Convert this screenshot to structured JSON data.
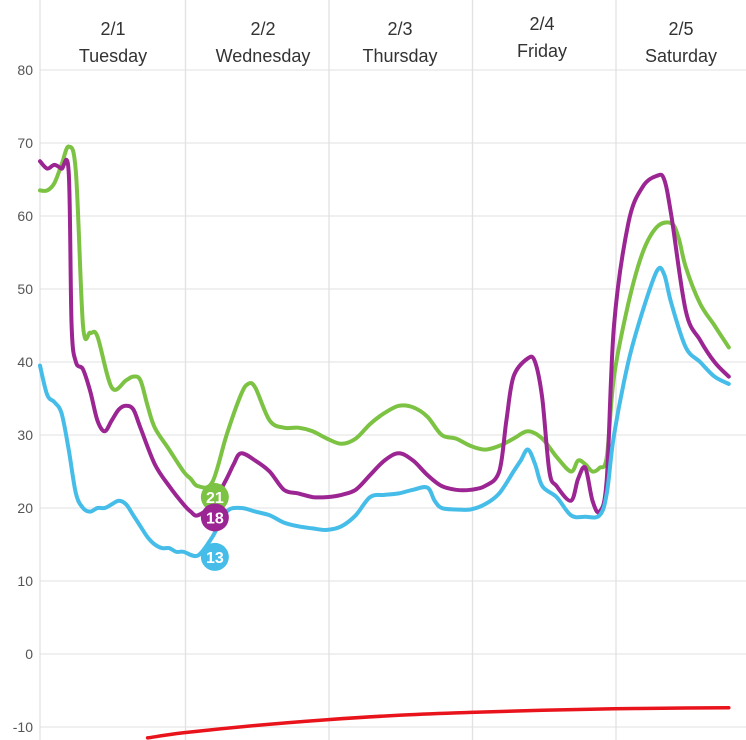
{
  "chart_data": {
    "type": "line",
    "title": "",
    "xlabel": "",
    "ylabel": "",
    "ylim": [
      -10,
      80
    ],
    "y_ticks": [
      "80",
      "70",
      "60",
      "50",
      "40",
      "30",
      "20",
      "10",
      "0",
      "-10"
    ],
    "y_tick_values": [
      80,
      70,
      60,
      50,
      40,
      30,
      20,
      10,
      0,
      -10
    ],
    "grid": true,
    "day_headers": [
      {
        "date": "2/1",
        "day": "Tuesday"
      },
      {
        "date": "2/2",
        "day": "Wednesday"
      },
      {
        "date": "2/3",
        "day": "Thursday"
      },
      {
        "date": "2/4",
        "day": "Friday"
      },
      {
        "date": "2/5",
        "day": "Saturday"
      }
    ],
    "series": [
      {
        "color": "#7cc243",
        "label": "21",
        "label_at": [
          1.1,
          21.5
        ],
        "points": [
          [
            0,
            63.5
          ],
          [
            0.05,
            63.5
          ],
          [
            0.1,
            64.5
          ],
          [
            0.15,
            67
          ],
          [
            0.2,
            69.5
          ],
          [
            0.25,
            66
          ],
          [
            0.3,
            45
          ],
          [
            0.35,
            44
          ],
          [
            0.4,
            43.5
          ],
          [
            0.5,
            36.5
          ],
          [
            0.6,
            37.5
          ],
          [
            0.65,
            38
          ],
          [
            0.7,
            37.5
          ],
          [
            0.75,
            34
          ],
          [
            0.8,
            31
          ],
          [
            0.9,
            28
          ],
          [
            1.0,
            25
          ],
          [
            1.05,
            24
          ],
          [
            1.1,
            23
          ],
          [
            1.2,
            23.5
          ],
          [
            1.3,
            30
          ],
          [
            1.4,
            35.5
          ],
          [
            1.45,
            37
          ],
          [
            1.5,
            36.5
          ],
          [
            1.6,
            32
          ],
          [
            1.7,
            31
          ],
          [
            1.8,
            31
          ],
          [
            1.9,
            30.5
          ],
          [
            2.0,
            29.5
          ],
          [
            2.1,
            28.8
          ],
          [
            2.2,
            29.5
          ],
          [
            2.3,
            31.5
          ],
          [
            2.4,
            33
          ],
          [
            2.5,
            34
          ],
          [
            2.6,
            33.8
          ],
          [
            2.7,
            32.5
          ],
          [
            2.8,
            30
          ],
          [
            2.9,
            29.5
          ],
          [
            3.0,
            28.5
          ],
          [
            3.1,
            28
          ],
          [
            3.2,
            28.5
          ],
          [
            3.3,
            29.5
          ],
          [
            3.4,
            30.5
          ],
          [
            3.5,
            29.5
          ],
          [
            3.6,
            27
          ],
          [
            3.7,
            25
          ],
          [
            3.75,
            26.5
          ],
          [
            3.8,
            26
          ],
          [
            3.85,
            25
          ],
          [
            3.9,
            25.5
          ],
          [
            3.95,
            27
          ],
          [
            4.0,
            38
          ],
          [
            4.1,
            48
          ],
          [
            4.2,
            55
          ],
          [
            4.3,
            58.5
          ],
          [
            4.4,
            59
          ],
          [
            4.45,
            57
          ],
          [
            4.5,
            53
          ],
          [
            4.6,
            48
          ],
          [
            4.7,
            45
          ],
          [
            4.8,
            42
          ]
        ]
      },
      {
        "color": "#9b2592",
        "label": "18",
        "label_at": [
          1.1,
          18.7
        ],
        "points": [
          [
            0,
            67.5
          ],
          [
            0.05,
            66.5
          ],
          [
            0.1,
            67
          ],
          [
            0.15,
            66.5
          ],
          [
            0.2,
            66
          ],
          [
            0.22,
            45
          ],
          [
            0.25,
            40
          ],
          [
            0.3,
            39
          ],
          [
            0.35,
            36
          ],
          [
            0.4,
            32
          ],
          [
            0.45,
            30.5
          ],
          [
            0.5,
            32
          ],
          [
            0.55,
            33.5
          ],
          [
            0.6,
            34
          ],
          [
            0.65,
            33.5
          ],
          [
            0.7,
            31
          ],
          [
            0.8,
            26
          ],
          [
            0.9,
            23
          ],
          [
            1.0,
            20.5
          ],
          [
            1.05,
            19.5
          ],
          [
            1.1,
            19
          ],
          [
            1.2,
            20.5
          ],
          [
            1.3,
            24
          ],
          [
            1.35,
            26
          ],
          [
            1.4,
            27.5
          ],
          [
            1.5,
            26.5
          ],
          [
            1.6,
            25
          ],
          [
            1.7,
            22.5
          ],
          [
            1.8,
            22
          ],
          [
            1.9,
            21.5
          ],
          [
            2.0,
            21.5
          ],
          [
            2.1,
            21.8
          ],
          [
            2.2,
            22.5
          ],
          [
            2.3,
            24.5
          ],
          [
            2.4,
            26.5
          ],
          [
            2.5,
            27.5
          ],
          [
            2.6,
            26.5
          ],
          [
            2.7,
            24.5
          ],
          [
            2.8,
            23
          ],
          [
            2.9,
            22.5
          ],
          [
            3.0,
            22.5
          ],
          [
            3.1,
            23
          ],
          [
            3.2,
            25
          ],
          [
            3.25,
            32
          ],
          [
            3.3,
            38
          ],
          [
            3.4,
            40.5
          ],
          [
            3.45,
            40
          ],
          [
            3.5,
            35
          ],
          [
            3.55,
            25
          ],
          [
            3.6,
            23
          ],
          [
            3.7,
            21
          ],
          [
            3.75,
            24
          ],
          [
            3.8,
            25.5
          ],
          [
            3.85,
            21
          ],
          [
            3.9,
            19.5
          ],
          [
            3.95,
            24
          ],
          [
            4.0,
            45
          ],
          [
            4.1,
            59
          ],
          [
            4.2,
            64
          ],
          [
            4.3,
            65.5
          ],
          [
            4.35,
            65
          ],
          [
            4.4,
            60
          ],
          [
            4.5,
            47
          ],
          [
            4.6,
            43
          ],
          [
            4.7,
            40
          ],
          [
            4.8,
            38
          ]
        ]
      },
      {
        "color": "#45bde8",
        "label": "13",
        "label_at": [
          1.1,
          13.3
        ],
        "points": [
          [
            0,
            39.5
          ],
          [
            0.05,
            35.5
          ],
          [
            0.1,
            34.5
          ],
          [
            0.15,
            33
          ],
          [
            0.2,
            28
          ],
          [
            0.25,
            22
          ],
          [
            0.3,
            20
          ],
          [
            0.35,
            19.5
          ],
          [
            0.4,
            20
          ],
          [
            0.45,
            20
          ],
          [
            0.5,
            20.5
          ],
          [
            0.55,
            21
          ],
          [
            0.6,
            20.5
          ],
          [
            0.65,
            19
          ],
          [
            0.7,
            17.5
          ],
          [
            0.75,
            16
          ],
          [
            0.8,
            15
          ],
          [
            0.85,
            14.5
          ],
          [
            0.9,
            14.5
          ],
          [
            0.95,
            14
          ],
          [
            1.0,
            14
          ],
          [
            1.1,
            13.5
          ],
          [
            1.2,
            16
          ],
          [
            1.3,
            19.5
          ],
          [
            1.4,
            20
          ],
          [
            1.5,
            19.5
          ],
          [
            1.6,
            19
          ],
          [
            1.7,
            18
          ],
          [
            1.8,
            17.5
          ],
          [
            1.9,
            17.2
          ],
          [
            2.0,
            17
          ],
          [
            2.1,
            17.5
          ],
          [
            2.2,
            19
          ],
          [
            2.3,
            21.5
          ],
          [
            2.4,
            21.8
          ],
          [
            2.5,
            22
          ],
          [
            2.6,
            22.5
          ],
          [
            2.7,
            22.8
          ],
          [
            2.75,
            21
          ],
          [
            2.8,
            20
          ],
          [
            2.9,
            19.8
          ],
          [
            3.0,
            19.8
          ],
          [
            3.1,
            20.5
          ],
          [
            3.2,
            22
          ],
          [
            3.3,
            25
          ],
          [
            3.35,
            26.5
          ],
          [
            3.4,
            28
          ],
          [
            3.45,
            26
          ],
          [
            3.5,
            23
          ],
          [
            3.6,
            21.5
          ],
          [
            3.7,
            19
          ],
          [
            3.8,
            18.8
          ],
          [
            3.9,
            19
          ],
          [
            3.95,
            22
          ],
          [
            4.0,
            30
          ],
          [
            4.1,
            40
          ],
          [
            4.2,
            47
          ],
          [
            4.3,
            52.5
          ],
          [
            4.35,
            52
          ],
          [
            4.4,
            48
          ],
          [
            4.5,
            42
          ],
          [
            4.6,
            40
          ],
          [
            4.7,
            38
          ],
          [
            4.8,
            37
          ]
        ]
      },
      {
        "color": "#e8131b",
        "points": [
          [
            0.75,
            -11.5
          ],
          [
            1.0,
            -10.8
          ],
          [
            1.5,
            -9.8
          ],
          [
            2.0,
            -9.0
          ],
          [
            2.5,
            -8.4
          ],
          [
            3.0,
            -8.0
          ],
          [
            3.5,
            -7.7
          ],
          [
            4.0,
            -7.5
          ],
          [
            4.5,
            -7.4
          ],
          [
            4.8,
            -7.35
          ]
        ]
      }
    ]
  }
}
